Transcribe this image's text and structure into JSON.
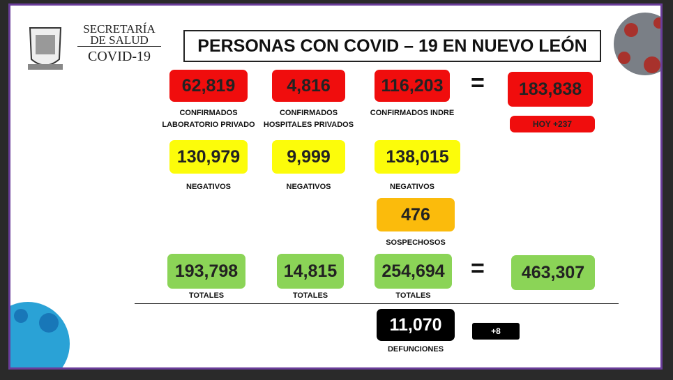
{
  "header": {
    "org_lines": [
      "SECRETARÍA",
      "DE SALUD"
    ],
    "program": "COVID-19",
    "title": "PERSONAS CON COVID – 19 EN NUEVO LEÓN"
  },
  "confirmed": {
    "items": [
      {
        "value": "62,819",
        "label": [
          "CONFIRMADOS",
          "LABORATORIO PRIVADO"
        ]
      },
      {
        "value": "4,816",
        "label": [
          "CONFIRMADOS",
          "HOSPITALES PRIVADOS"
        ]
      },
      {
        "value": "116,203",
        "label": [
          "CONFIRMADOS INDRE"
        ]
      }
    ],
    "equals": "=",
    "total": "183,838",
    "today": "HOY +237"
  },
  "negatives": [
    {
      "value": "130,979",
      "label": "NEGATIVOS"
    },
    {
      "value": "9,999",
      "label": "NEGATIVOS"
    },
    {
      "value": "138,015",
      "label": "NEGATIVOS"
    }
  ],
  "suspects": {
    "value": "476",
    "label": "SOSPECHOSOS"
  },
  "totals": {
    "items": [
      {
        "value": "193,798",
        "label": "TOTALES"
      },
      {
        "value": "14,815",
        "label": "TOTALES"
      },
      {
        "value": "254,694",
        "label": "TOTALES"
      }
    ],
    "equals": "=",
    "total": "463,307"
  },
  "deaths": {
    "value": "11,070",
    "label": "DEFUNCIONES",
    "change": "+8"
  }
}
